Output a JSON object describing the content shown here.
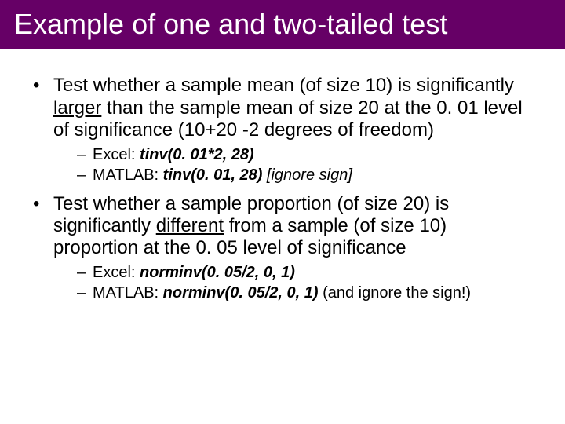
{
  "colors": {
    "title_bg": "#660066",
    "title_text": "#ffffff",
    "body_text": "#000000",
    "background": "#ffffff"
  },
  "typography": {
    "title_fontsize": 36,
    "bullet_fontsize": 24,
    "sub_bullet_fontsize": 20,
    "font_family": "Arial"
  },
  "title": "Example of one and two-tailed test",
  "bullets": [
    {
      "pre": "Test whether a sample mean (of size 10) is significantly ",
      "word": "larger",
      "post": " than the sample mean of size 20 at the 0. 01 level of significance (10+20 -2 degrees of freedom)",
      "sub": [
        {
          "label": "Excel: ",
          "code": "tinv(0. 01*2, 28)",
          "note": ""
        },
        {
          "label": "MATLAB: ",
          "code": "tinv(0. 01, 28)",
          "note": " [ignore sign]"
        }
      ]
    },
    {
      "pre": "Test whether a sample proportion (of size 20) is significantly ",
      "word": "different",
      "post": " from a sample (of size 10) proportion at the 0. 05 level of significance",
      "sub": [
        {
          "label": "Excel: ",
          "code": "norminv(0. 05/2, 0, 1)",
          "note": ""
        },
        {
          "label": "MATLAB: ",
          "code": "norminv(0. 05/2, 0, 1)",
          "note": " (and ignore the sign!)"
        }
      ]
    }
  ]
}
